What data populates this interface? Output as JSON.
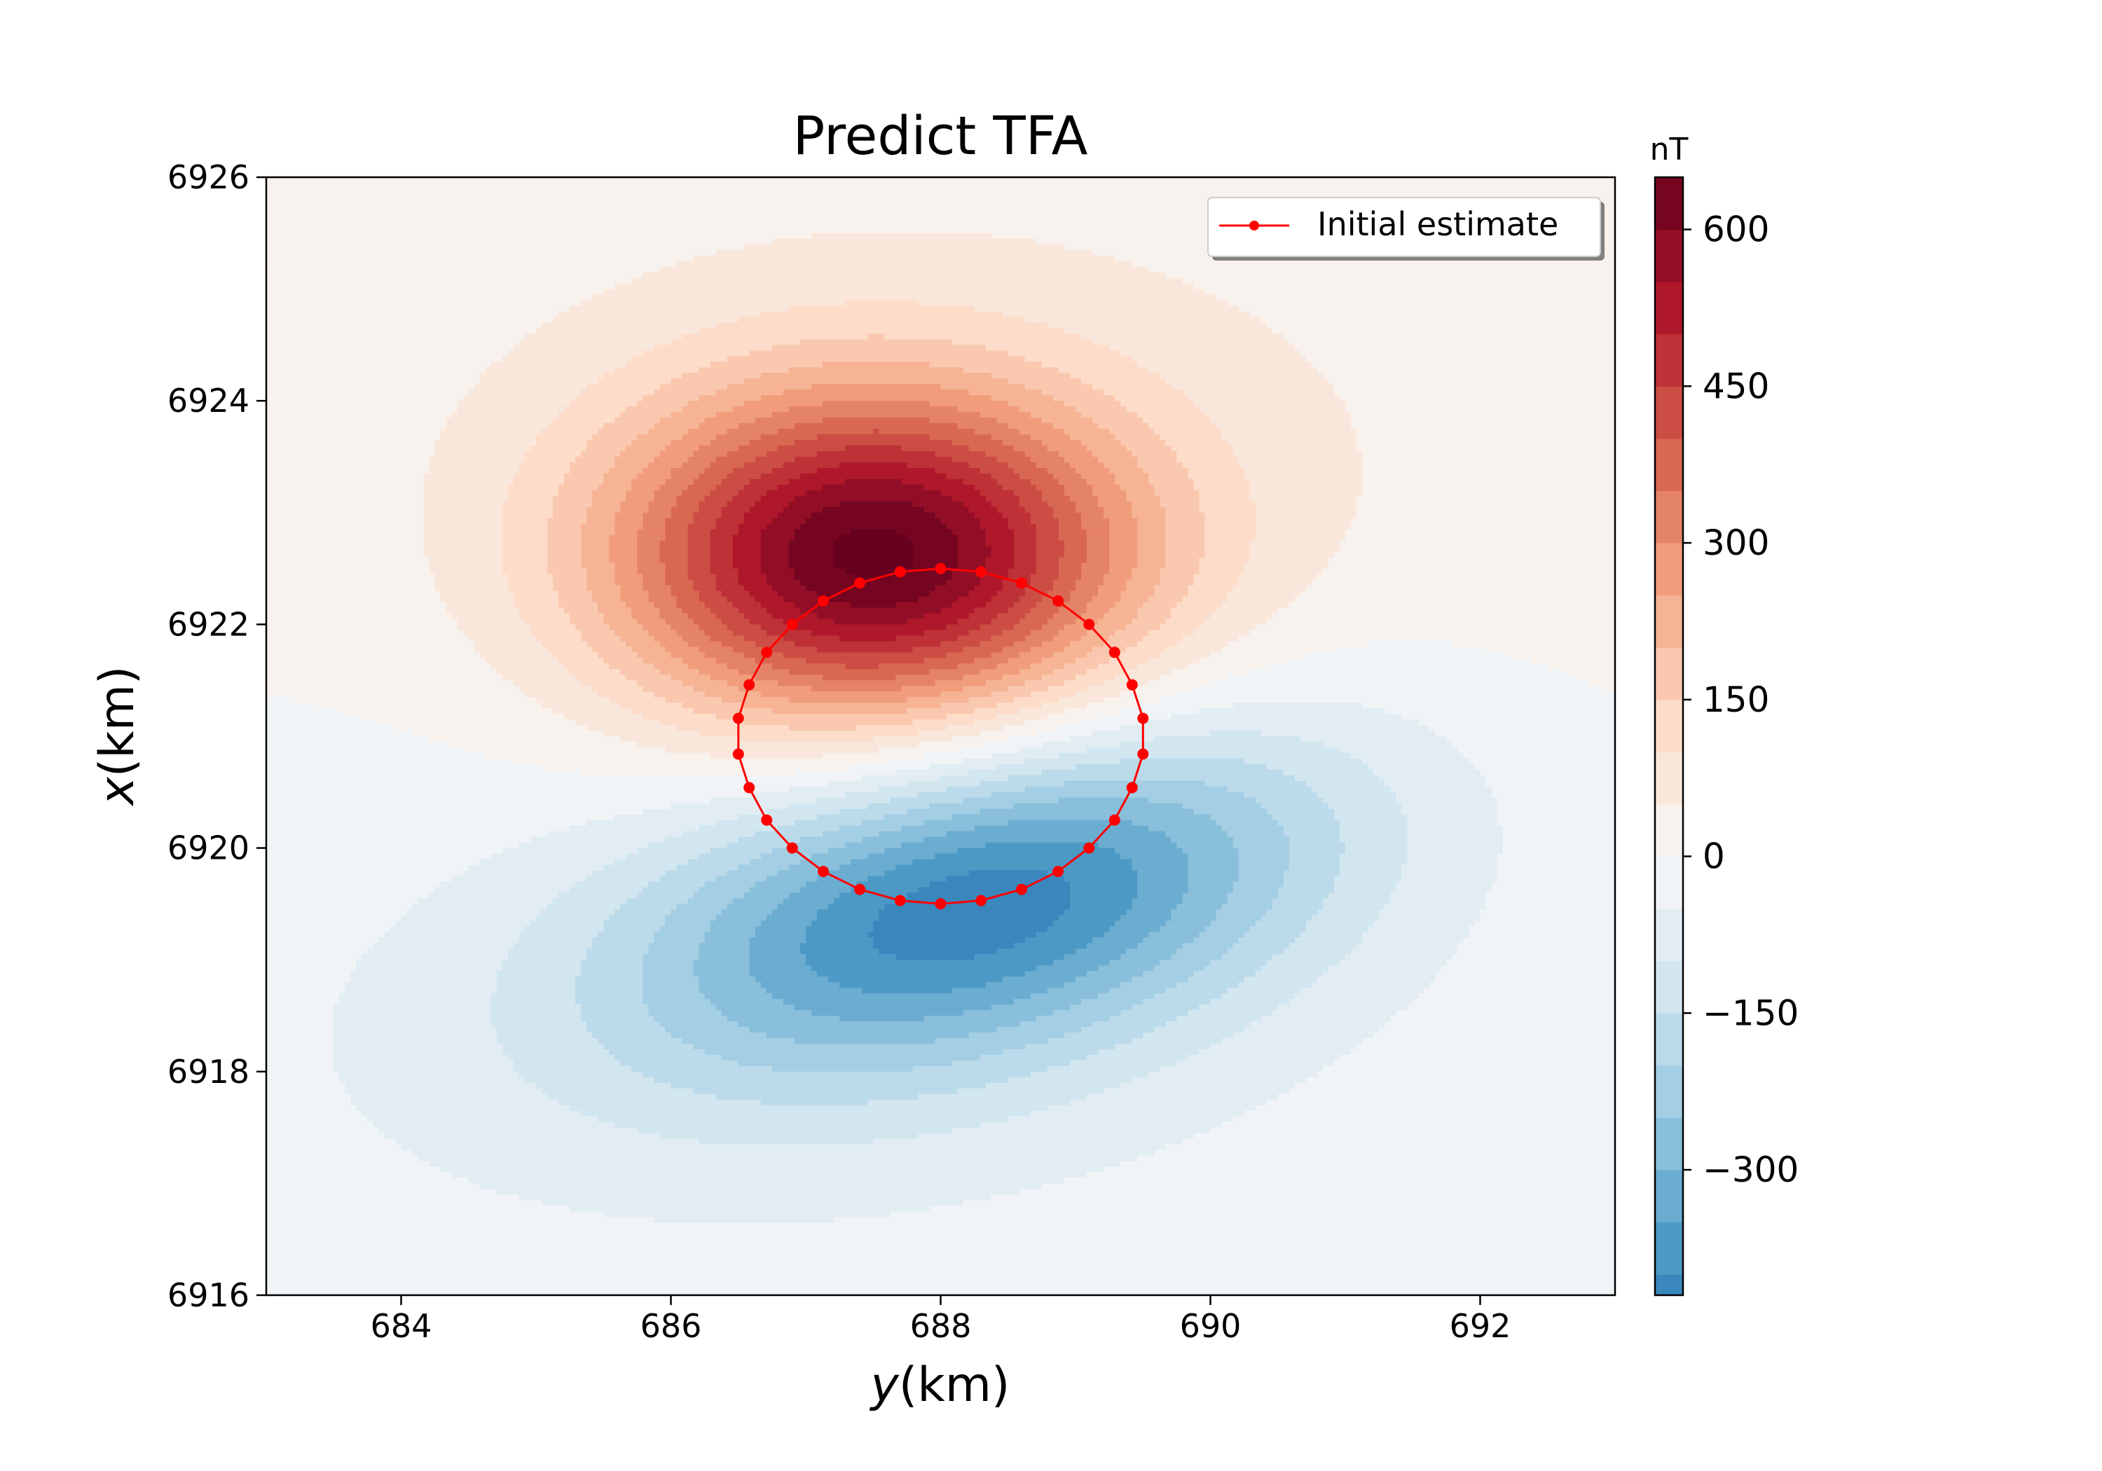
{
  "chart_data": {
    "type": "contourf",
    "title": "Predict TFA",
    "xlabel_italic": "y",
    "xlabel_unit": "(km)",
    "ylabel_italic": "x",
    "ylabel_unit": "(km)",
    "xlim": [
      683,
      693
    ],
    "ylim": [
      6916,
      6926
    ],
    "x_ticks": [
      684,
      686,
      688,
      690,
      692
    ],
    "y_ticks": [
      6916,
      6918,
      6920,
      6922,
      6924,
      6926
    ],
    "colormap": "RdBu_r",
    "colorbar": {
      "label": "nT",
      "range": [
        -420,
        650
      ],
      "ticks": [
        -300,
        -150,
        0,
        150,
        300,
        450,
        600
      ],
      "tick_labels": [
        "−300",
        "−150",
        "0",
        "150",
        "300",
        "450",
        "600"
      ],
      "level_step": 50
    },
    "field": {
      "description_free": true,
      "positive_peak": {
        "y": 687.5,
        "x": 6922.6,
        "value": 640
      },
      "negative_peak": {
        "y": 688.3,
        "x": 6919.5,
        "value": -400
      }
    },
    "series": [
      {
        "name": "Initial estimate",
        "color": "#ff0000",
        "marker": "o",
        "closed": true,
        "y": [
          688.0,
          688.3,
          688.6,
          688.87,
          689.1,
          689.29,
          689.42,
          689.5,
          689.5,
          689.42,
          689.29,
          689.1,
          688.87,
          688.6,
          688.3,
          688.0,
          687.7,
          687.4,
          687.13,
          686.9,
          686.71,
          686.58,
          686.5,
          686.5,
          686.58,
          686.71,
          686.9,
          687.13,
          687.4,
          687.7
        ],
        "x": [
          6922.5,
          6922.47,
          6922.37,
          6922.21,
          6922.0,
          6921.75,
          6921.46,
          6921.16,
          6920.84,
          6920.54,
          6920.25,
          6920.0,
          6919.79,
          6919.63,
          6919.53,
          6919.5,
          6919.53,
          6919.63,
          6919.79,
          6920.0,
          6920.25,
          6920.54,
          6920.84,
          6921.16,
          6921.46,
          6921.75,
          6922.0,
          6922.21,
          6922.37,
          6922.47
        ]
      }
    ],
    "legend": {
      "placement": "upper right",
      "label": "Initial estimate"
    }
  }
}
